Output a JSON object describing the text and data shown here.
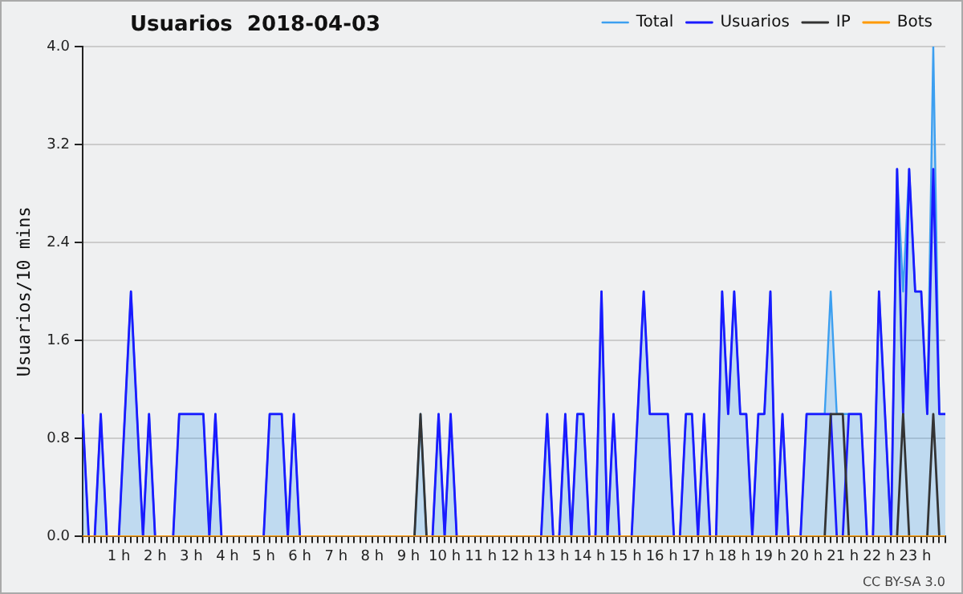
{
  "chart_data": {
    "type": "line",
    "title": "Usuarios  2018-04-03",
    "ylabel": "Usuarios/10 mins",
    "annotations": [
      "CC BY-SA 3.0"
    ],
    "categories": [
      null,
      null,
      null,
      null,
      null,
      null,
      "1 h",
      null,
      null,
      null,
      null,
      null,
      "2 h",
      null,
      null,
      null,
      null,
      null,
      "3 h",
      null,
      null,
      null,
      null,
      null,
      "4 h",
      null,
      null,
      null,
      null,
      null,
      "5 h",
      null,
      null,
      null,
      null,
      null,
      "6 h",
      null,
      null,
      null,
      null,
      null,
      "7 h",
      null,
      null,
      null,
      null,
      null,
      "8 h",
      null,
      null,
      null,
      null,
      null,
      "9 h",
      null,
      null,
      null,
      null,
      null,
      "10 h",
      null,
      null,
      null,
      null,
      null,
      "11 h",
      null,
      null,
      null,
      null,
      null,
      "12 h",
      null,
      null,
      null,
      null,
      null,
      "13 h",
      null,
      null,
      null,
      null,
      null,
      "14 h",
      null,
      null,
      null,
      null,
      null,
      "15 h",
      null,
      null,
      null,
      null,
      null,
      "16 h",
      null,
      null,
      null,
      null,
      null,
      "17 h",
      null,
      null,
      null,
      null,
      null,
      "18 h",
      null,
      null,
      null,
      null,
      null,
      "19 h",
      null,
      null,
      null,
      null,
      null,
      "20 h",
      null,
      null,
      null,
      null,
      null,
      "21 h",
      null,
      null,
      null,
      null,
      null,
      "22 h",
      null,
      null,
      null,
      null,
      null,
      "23 h",
      null,
      null,
      null,
      null,
      null
    ],
    "series": [
      {
        "name": "Total",
        "type": "area",
        "color": "#3c9ff0",
        "values": [
          1,
          0,
          0,
          1,
          0,
          0,
          0,
          1,
          2,
          1,
          0,
          1,
          0,
          0,
          0,
          0,
          1,
          1,
          1,
          1,
          1,
          0,
          1,
          0,
          0,
          0,
          0,
          0,
          0,
          0,
          0,
          1,
          1,
          1,
          0,
          1,
          0,
          0,
          0,
          0,
          0,
          0,
          0,
          0,
          0,
          0,
          0,
          0,
          0,
          0,
          0,
          0,
          0,
          0,
          0,
          0,
          1,
          0,
          0,
          1,
          0,
          1,
          0,
          0,
          0,
          0,
          0,
          0,
          0,
          0,
          0,
          0,
          0,
          0,
          0,
          0,
          0,
          1,
          0,
          0,
          1,
          0,
          1,
          1,
          0,
          0,
          2,
          0,
          1,
          0,
          0,
          0,
          1,
          2,
          1,
          1,
          1,
          1,
          0,
          0,
          1,
          1,
          0,
          1,
          0,
          0,
          2,
          1,
          2,
          1,
          1,
          0,
          1,
          1,
          2,
          0,
          1,
          0,
          0,
          0,
          1,
          1,
          1,
          1,
          2,
          1,
          1,
          1,
          1,
          1,
          0,
          0,
          2,
          1,
          0,
          3,
          2,
          3,
          2,
          2,
          1,
          4,
          1,
          1
        ]
      },
      {
        "name": "Usuarios",
        "type": "line",
        "color": "#1a1aff",
        "values": [
          1,
          0,
          0,
          1,
          0,
          0,
          0,
          1,
          2,
          1,
          0,
          1,
          0,
          0,
          0,
          0,
          1,
          1,
          1,
          1,
          1,
          0,
          1,
          0,
          0,
          0,
          0,
          0,
          0,
          0,
          0,
          1,
          1,
          1,
          0,
          1,
          0,
          0,
          0,
          0,
          0,
          0,
          0,
          0,
          0,
          0,
          0,
          0,
          0,
          0,
          0,
          0,
          0,
          0,
          0,
          0,
          null,
          0,
          0,
          1,
          0,
          1,
          0,
          0,
          0,
          0,
          0,
          0,
          0,
          0,
          0,
          0,
          0,
          0,
          0,
          0,
          0,
          1,
          0,
          0,
          1,
          0,
          1,
          1,
          0,
          0,
          2,
          0,
          1,
          0,
          0,
          0,
          1,
          2,
          1,
          1,
          1,
          1,
          0,
          0,
          1,
          1,
          0,
          1,
          0,
          0,
          2,
          1,
          2,
          1,
          1,
          0,
          1,
          1,
          2,
          0,
          1,
          0,
          0,
          0,
          1,
          1,
          1,
          1,
          1,
          0,
          0,
          1,
          1,
          1,
          0,
          0,
          2,
          1,
          0,
          3,
          1,
          3,
          2,
          2,
          1,
          3,
          1,
          1
        ]
      },
      {
        "name": "IP",
        "type": "line",
        "color": "#333333",
        "values": [
          0,
          0,
          0,
          0,
          0,
          0,
          0,
          0,
          0,
          0,
          0,
          0,
          0,
          0,
          0,
          0,
          0,
          0,
          0,
          0,
          0,
          0,
          0,
          0,
          0,
          0,
          0,
          0,
          0,
          0,
          0,
          0,
          0,
          0,
          0,
          0,
          0,
          0,
          0,
          0,
          0,
          0,
          0,
          0,
          0,
          0,
          0,
          0,
          0,
          0,
          0,
          0,
          0,
          0,
          0,
          0,
          1,
          0,
          0,
          0,
          0,
          0,
          0,
          0,
          0,
          0,
          0,
          0,
          0,
          0,
          0,
          0,
          0,
          0,
          0,
          0,
          0,
          0,
          0,
          0,
          0,
          0,
          0,
          0,
          0,
          0,
          0,
          0,
          0,
          0,
          0,
          0,
          0,
          0,
          0,
          0,
          0,
          0,
          0,
          0,
          0,
          0,
          0,
          0,
          0,
          0,
          0,
          0,
          0,
          0,
          0,
          0,
          0,
          0,
          0,
          0,
          0,
          0,
          0,
          0,
          0,
          0,
          0,
          0,
          1,
          1,
          1,
          0,
          0,
          0,
          0,
          0,
          0,
          0,
          0,
          0,
          1,
          0,
          0,
          0,
          0,
          1,
          0,
          0
        ]
      },
      {
        "name": "Bots",
        "type": "line",
        "color": "#ff9900",
        "values": [
          0,
          0,
          0,
          0,
          0,
          0,
          0,
          0,
          0,
          0,
          0,
          0,
          0,
          0,
          0,
          0,
          0,
          0,
          0,
          0,
          0,
          0,
          0,
          0,
          0,
          0,
          0,
          0,
          0,
          0,
          0,
          0,
          0,
          0,
          0,
          0,
          0,
          0,
          0,
          0,
          0,
          0,
          0,
          0,
          0,
          0,
          0,
          0,
          0,
          0,
          0,
          0,
          0,
          0,
          0,
          0,
          0,
          0,
          0,
          0,
          0,
          0,
          0,
          0,
          0,
          0,
          0,
          0,
          0,
          0,
          0,
          0,
          0,
          0,
          0,
          0,
          0,
          0,
          0,
          0,
          0,
          0,
          0,
          0,
          0,
          0,
          0,
          0,
          0,
          0,
          0,
          0,
          0,
          0,
          0,
          0,
          0,
          0,
          0,
          0,
          0,
          0,
          0,
          0,
          0,
          0,
          0,
          0,
          0,
          0,
          0,
          0,
          0,
          0,
          0,
          0,
          0,
          0,
          0,
          0,
          0,
          0,
          0,
          0,
          0,
          0,
          0,
          0,
          0,
          0,
          0,
          0,
          0,
          0,
          0,
          0,
          0,
          0,
          0,
          0,
          0,
          0,
          0,
          0
        ]
      }
    ],
    "ylim": [
      0,
      4
    ],
    "yticks": [
      {
        "value": 0,
        "label": "0.0"
      },
      {
        "value": 0.8,
        "label": "0.8"
      },
      {
        "value": 1.6,
        "label": "1.6"
      },
      {
        "value": 2.4,
        "label": "2.4"
      },
      {
        "value": 3.2,
        "label": "3.2"
      },
      {
        "value": 4,
        "label": "4.0"
      }
    ],
    "grid": "y",
    "legend": "top right",
    "marker": "none",
    "line_style": "solid"
  }
}
